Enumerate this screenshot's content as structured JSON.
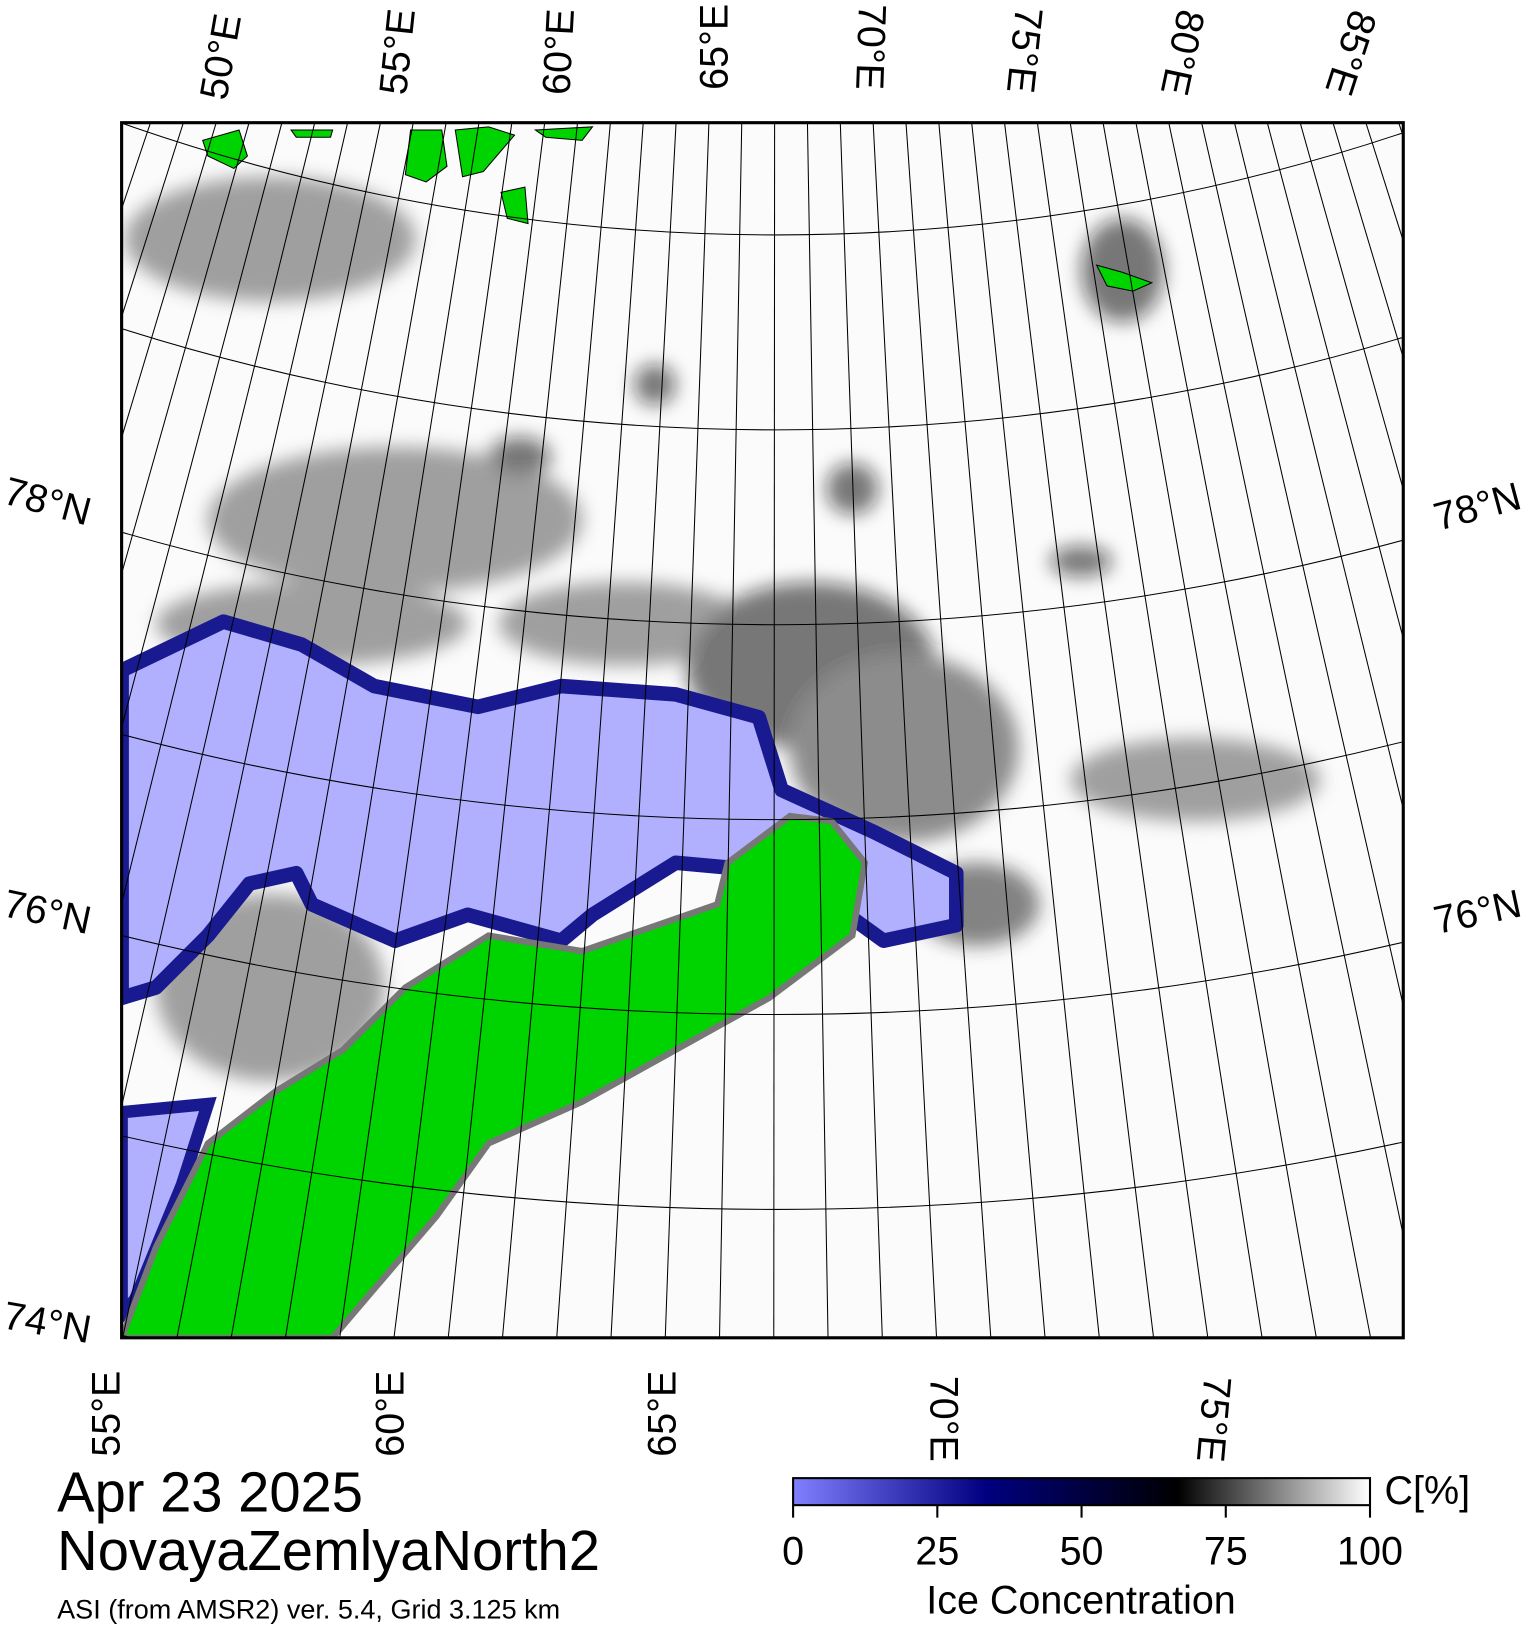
{
  "map": {
    "top_labels": [
      "50°E",
      "55°E",
      "60°E",
      "65°E",
      "70°E",
      "75°E",
      "80°E",
      "85°E"
    ],
    "bottom_labels": [
      "55°E",
      "60°E",
      "65°E",
      "70°E",
      "75°E"
    ],
    "left_labels": [
      "78°N",
      "76°N",
      "74°N"
    ],
    "right_labels": [
      "78°N",
      "76°N"
    ]
  },
  "title": {
    "date": "Apr 23 2025",
    "region": "NovayaZemlyaNorth2",
    "source": "ASI (from AMSR2) ver. 5.4,  Grid 3.125 km"
  },
  "colorbar": {
    "lim": [
      0,
      100
    ],
    "ticks": [
      0,
      25,
      50,
      75,
      100
    ],
    "unit": "C[%]",
    "label": "Ice Concentration",
    "colors": [
      "#8080ff",
      "#000080",
      "#000000",
      "#ffffff"
    ]
  }
}
